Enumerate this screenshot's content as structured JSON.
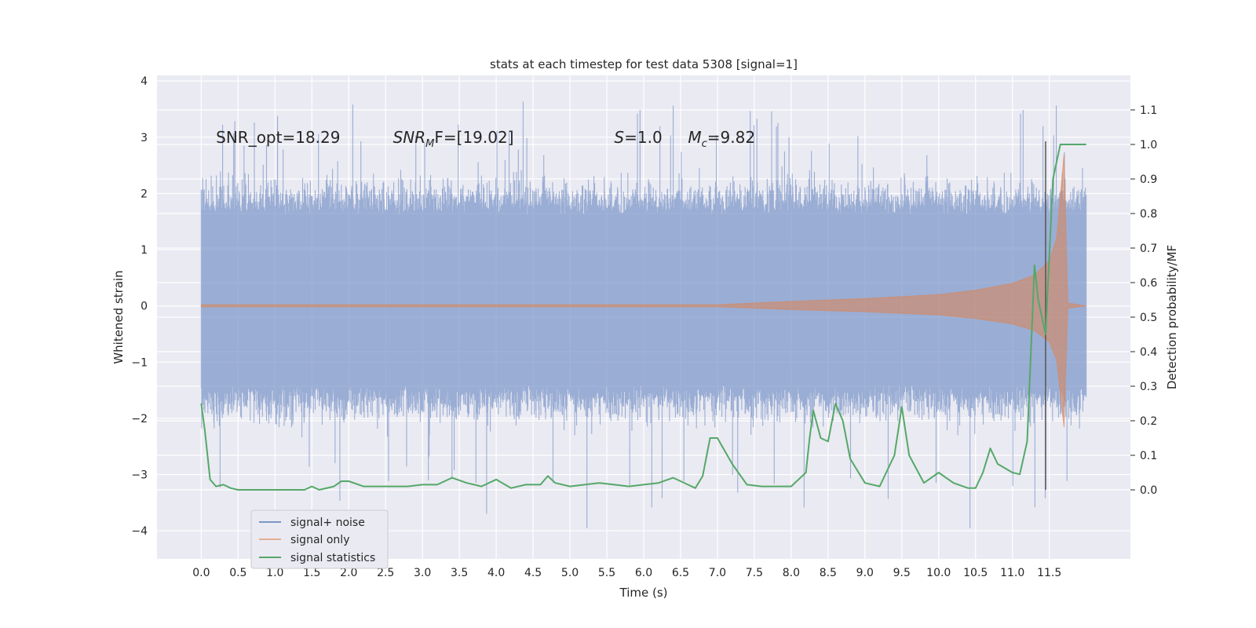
{
  "chart_data": {
    "type": "line",
    "title": "stats at each timestep for test data 5308 [signal=1]",
    "xlabel": "Time (s)",
    "ylabel_left": "Whitened strain",
    "ylabel_right": "Detection probability/MF",
    "xlim": [
      -0.6,
      12.6
    ],
    "ylim_left": [
      -4.5,
      4.1
    ],
    "ylim_right": [
      -0.2,
      1.2
    ],
    "x_ticks": [
      "0.0",
      "0.5",
      "1.0",
      "1.5",
      "2.0",
      "2.5",
      "3.0",
      "3.5",
      "4.0",
      "4.5",
      "5.0",
      "5.5",
      "6.0",
      "6.5",
      "7.0",
      "7.5",
      "8.0",
      "8.5",
      "9.0",
      "9.5",
      "10.0",
      "10.5",
      "11.0",
      "11.5"
    ],
    "y_left_ticks": [
      "−4",
      "−3",
      "−2",
      "−1",
      "0",
      "1",
      "2",
      "3",
      "4"
    ],
    "y_right_ticks": [
      "0.0",
      "0.1",
      "0.2",
      "0.3",
      "0.4",
      "0.5",
      "0.6",
      "0.7",
      "0.8",
      "0.9",
      "1.0",
      "1.1"
    ],
    "grid": true,
    "legend_position": "lower-left",
    "annotations": [
      {
        "text": "SNR_opt=18.29",
        "x": 0.2,
        "y": 2.9
      },
      {
        "text": "SNR",
        "sub": "M",
        "suffix": "F=[19.02]",
        "x": 2.6,
        "y": 2.9
      },
      {
        "text": "S",
        "suffix": "=1.0",
        "x": 5.6,
        "y": 2.9
      },
      {
        "text": "M",
        "sub": "c",
        "suffix": "=9.82",
        "x": 6.6,
        "y": 2.9
      }
    ],
    "vline": {
      "x": 11.45,
      "ymin": 0.0,
      "ymax": 1.0,
      "color": "#555555"
    },
    "series": [
      {
        "name": "signal+ noise",
        "color": "#7b96c7",
        "axis": "left",
        "description": "noise band",
        "x_range": [
          0.0,
          12.0
        ],
        "typical_range": [
          -1.5,
          1.7
        ],
        "extremes": [
          -4.1,
          3.7
        ]
      },
      {
        "name": "signal only",
        "color": "#dd8452",
        "axis": "left",
        "envelope_x": [
          0.0,
          7.0,
          8.0,
          9.0,
          10.0,
          10.5,
          11.0,
          11.3,
          11.5,
          11.6,
          11.7,
          11.75,
          12.0
        ],
        "envelope_y": [
          0.02,
          0.02,
          0.08,
          0.13,
          0.2,
          0.28,
          0.4,
          0.55,
          0.8,
          1.2,
          2.7,
          0.05,
          0.0
        ]
      },
      {
        "name": "signal statistics",
        "color": "#55a868",
        "axis": "right",
        "x": [
          0.0,
          0.05,
          0.12,
          0.2,
          0.3,
          0.4,
          0.5,
          0.7,
          0.9,
          1.0,
          1.2,
          1.4,
          1.5,
          1.6,
          1.8,
          1.9,
          2.0,
          2.2,
          2.4,
          2.6,
          2.8,
          3.0,
          3.2,
          3.4,
          3.6,
          3.8,
          4.0,
          4.2,
          4.4,
          4.6,
          4.7,
          4.8,
          5.0,
          5.2,
          5.4,
          5.6,
          5.8,
          6.0,
          6.2,
          6.4,
          6.6,
          6.7,
          6.8,
          6.9,
          7.0,
          7.2,
          7.4,
          7.6,
          7.8,
          8.0,
          8.2,
          8.25,
          8.3,
          8.4,
          8.5,
          8.6,
          8.7,
          8.8,
          9.0,
          9.2,
          9.4,
          9.5,
          9.6,
          9.7,
          9.8,
          10.0,
          10.2,
          10.4,
          10.5,
          10.6,
          10.7,
          10.8,
          11.0,
          11.1,
          11.2,
          11.3,
          11.35,
          11.45,
          11.55,
          11.65,
          11.75,
          12.0
        ],
        "y": [
          0.25,
          0.17,
          0.03,
          0.01,
          0.015,
          0.005,
          0.0,
          0.0,
          0.0,
          0.0,
          0.0,
          0.0,
          0.01,
          0.0,
          0.01,
          0.025,
          0.025,
          0.01,
          0.01,
          0.01,
          0.01,
          0.015,
          0.015,
          0.035,
          0.02,
          0.01,
          0.03,
          0.005,
          0.015,
          0.015,
          0.04,
          0.02,
          0.01,
          0.015,
          0.02,
          0.015,
          0.01,
          0.015,
          0.02,
          0.035,
          0.015,
          0.005,
          0.04,
          0.15,
          0.15,
          0.075,
          0.015,
          0.01,
          0.01,
          0.01,
          0.05,
          0.15,
          0.23,
          0.15,
          0.14,
          0.25,
          0.2,
          0.09,
          0.02,
          0.01,
          0.1,
          0.24,
          0.1,
          0.06,
          0.02,
          0.05,
          0.02,
          0.005,
          0.005,
          0.05,
          0.12,
          0.075,
          0.05,
          0.045,
          0.14,
          0.65,
          0.55,
          0.45,
          0.9,
          1.0,
          1.0,
          1.0
        ]
      }
    ]
  }
}
